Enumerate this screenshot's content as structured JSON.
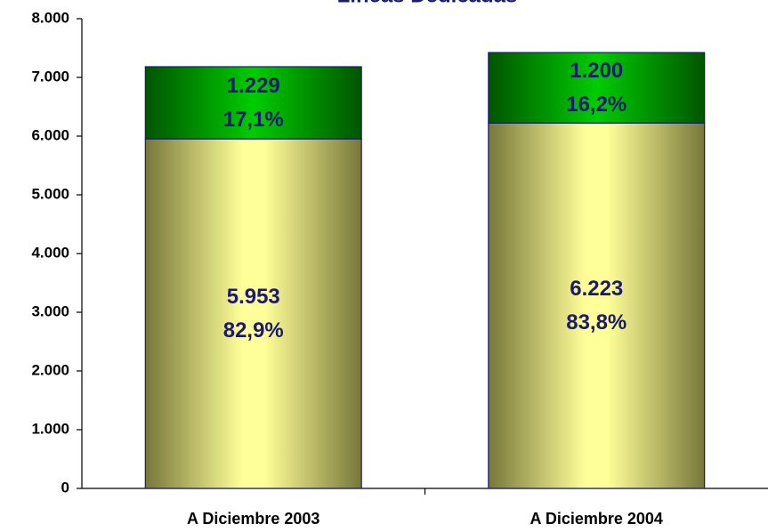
{
  "chart_data": {
    "type": "stacked_bar",
    "title": "Líneas Dedicadas",
    "categories": [
      "A Diciembre 2003",
      "A Diciembre 2004"
    ],
    "series": [
      {
        "name": null,
        "color": "#ffff99",
        "values": [
          5953,
          6223
        ],
        "value_labels": [
          "5.953",
          "6.223"
        ],
        "percent_labels": [
          "82,9%",
          "83,8%"
        ]
      },
      {
        "name": null,
        "color": "#00c000",
        "values": [
          1229,
          1200
        ],
        "value_labels": [
          "1.229",
          "1.200"
        ],
        "percent_labels": [
          "17,1%",
          "16,2%"
        ]
      }
    ],
    "ylim": [
      0,
      8000
    ],
    "yticks": [
      0,
      {
        "value": 1000,
        "label": "1.000"
      },
      {
        "value": 2000,
        "label": "2.000"
      },
      {
        "value": 3000,
        "label": "3.000"
      },
      {
        "value": 4000,
        "label": "4.000"
      },
      {
        "value": 5000,
        "label": "5.000"
      },
      {
        "value": 6000,
        "label": "6.000"
      },
      {
        "value": 7000,
        "label": "7.000"
      },
      {
        "value": 8000,
        "label": "8.000"
      }
    ],
    "grid": false
  }
}
